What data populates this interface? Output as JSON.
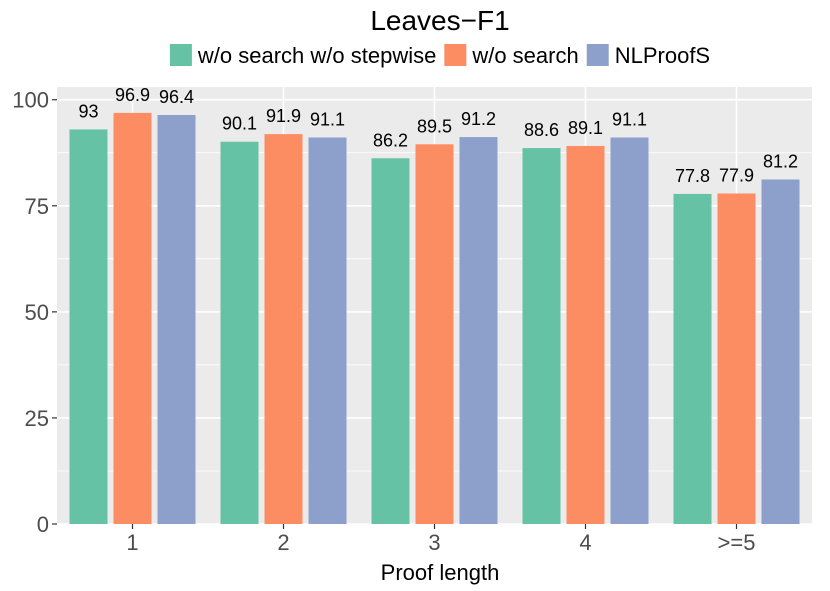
{
  "chart_data": {
    "type": "bar",
    "title": "Leaves−F1",
    "xlabel": "Proof length",
    "ylabel": "",
    "categories": [
      "1",
      "2",
      "3",
      "4",
      ">=5"
    ],
    "ylim": [
      0,
      103
    ],
    "yticks": [
      0,
      25,
      50,
      75,
      100
    ],
    "grid": true,
    "legend_position": "top",
    "series": [
      {
        "name": "w/o search w/o stepwise",
        "color": "#66c2a5",
        "values": [
          93,
          90.1,
          86.2,
          88.6,
          77.8
        ],
        "labels": [
          "93",
          "90.1",
          "86.2",
          "88.6",
          "77.8"
        ]
      },
      {
        "name": "w/o search",
        "color": "#fc8d62",
        "values": [
          96.9,
          91.9,
          89.5,
          89.1,
          77.9
        ],
        "labels": [
          "96.9",
          "91.9",
          "89.5",
          "89.1",
          "77.9"
        ]
      },
      {
        "name": "NLProofS",
        "color": "#8da0cb",
        "values": [
          96.4,
          91.1,
          91.2,
          91.1,
          81.2
        ],
        "labels": [
          "96.4",
          "91.1",
          "91.2",
          "91.1",
          "81.2"
        ]
      }
    ],
    "panel_background": "#ebebeb",
    "gridline_color": "#ffffff"
  }
}
